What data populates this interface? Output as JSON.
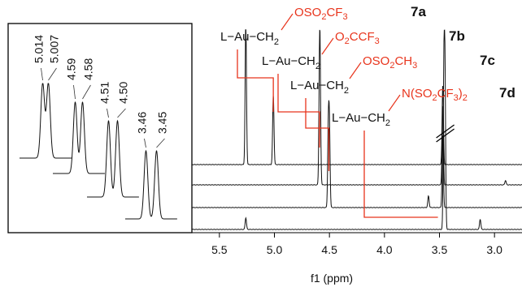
{
  "chart_data": {
    "type": "line",
    "xlabel": "f1 (ppm)",
    "x_reversed": true,
    "xlim": [
      5.75,
      2.75
    ],
    "x_ticks": [
      "5.5",
      "5.0",
      "4.5",
      "4.0",
      "3.5",
      "3.0"
    ],
    "x_tick_values": [
      5.5,
      5.0,
      4.5,
      4.0,
      3.5,
      3.0
    ],
    "series": [
      {
        "compound": "7a",
        "fragment_left": "L−Au−CH",
        "fragment_left_sub": "2",
        "substituent": [
          {
            "t": "OSO"
          },
          {
            "t": "2",
            "sub": true
          },
          {
            "t": "CF"
          },
          {
            "t": "3",
            "sub": true
          }
        ],
        "peaks": [
          {
            "ppm": 5.26,
            "h": 1.0
          },
          {
            "ppm": 5.01,
            "h": 0.48
          },
          {
            "ppm": 3.47,
            "h": 0.55
          }
        ],
        "ch2_ppm": 5.01
      },
      {
        "compound": "7b",
        "fragment_left": "L−Au−CH",
        "fragment_left_sub": "2",
        "substituent": [
          {
            "t": "O"
          },
          {
            "t": "2",
            "sub": true
          },
          {
            "t": "CCF"
          },
          {
            "t": "3",
            "sub": true
          }
        ],
        "peaks": [
          {
            "ppm": 4.59,
            "h": 0.6
          },
          {
            "ppm": 4.585,
            "h": 0.6
          },
          {
            "ppm": 3.47,
            "h": 0.55
          },
          {
            "ppm": 2.9,
            "h": 0.03
          }
        ],
        "ch2_ppm": 4.59
      },
      {
        "compound": "7c",
        "fragment_left": "L−Au−CH",
        "fragment_left_sub": "2",
        "substituent": [
          {
            "t": "OSO"
          },
          {
            "t": "2",
            "sub": true
          },
          {
            "t": "CH"
          },
          {
            "t": "3",
            "sub": true
          }
        ],
        "peaks": [
          {
            "ppm": 4.51,
            "h": 0.52
          },
          {
            "ppm": 4.5,
            "h": 0.52
          },
          {
            "ppm": 3.6,
            "h": 0.08
          },
          {
            "ppm": 3.47,
            "h": 0.5
          }
        ],
        "ch2_ppm": 4.505
      },
      {
        "compound": "7d",
        "fragment_left": "L−Au−CH",
        "fragment_left_sub": "2",
        "substituent": [
          {
            "t": "N(SO"
          },
          {
            "t": "2",
            "sub": true
          },
          {
            "t": "CF"
          },
          {
            "t": "3",
            "sub": true
          },
          {
            "t": ")"
          },
          {
            "t": "2",
            "sub": true
          }
        ],
        "peaks": [
          {
            "ppm": 5.26,
            "h": 0.08
          },
          {
            "ppm": 3.46,
            "h": 1.0
          },
          {
            "ppm": 3.45,
            "h": 1.0
          },
          {
            "ppm": 3.13,
            "h": 0.07
          }
        ],
        "ch2_ppm": 3.455
      }
    ],
    "inset": {
      "multiplets": [
        {
          "labels": [
            "5.014",
            "5.007"
          ]
        },
        {
          "labels": [
            "4.59",
            "4.58"
          ]
        },
        {
          "labels": [
            "4.51",
            "4.50"
          ]
        },
        {
          "labels": [
            "3.46",
            "3.45"
          ]
        }
      ]
    },
    "colors": {
      "trace": "#111111",
      "annotation": "#e8341c"
    }
  }
}
